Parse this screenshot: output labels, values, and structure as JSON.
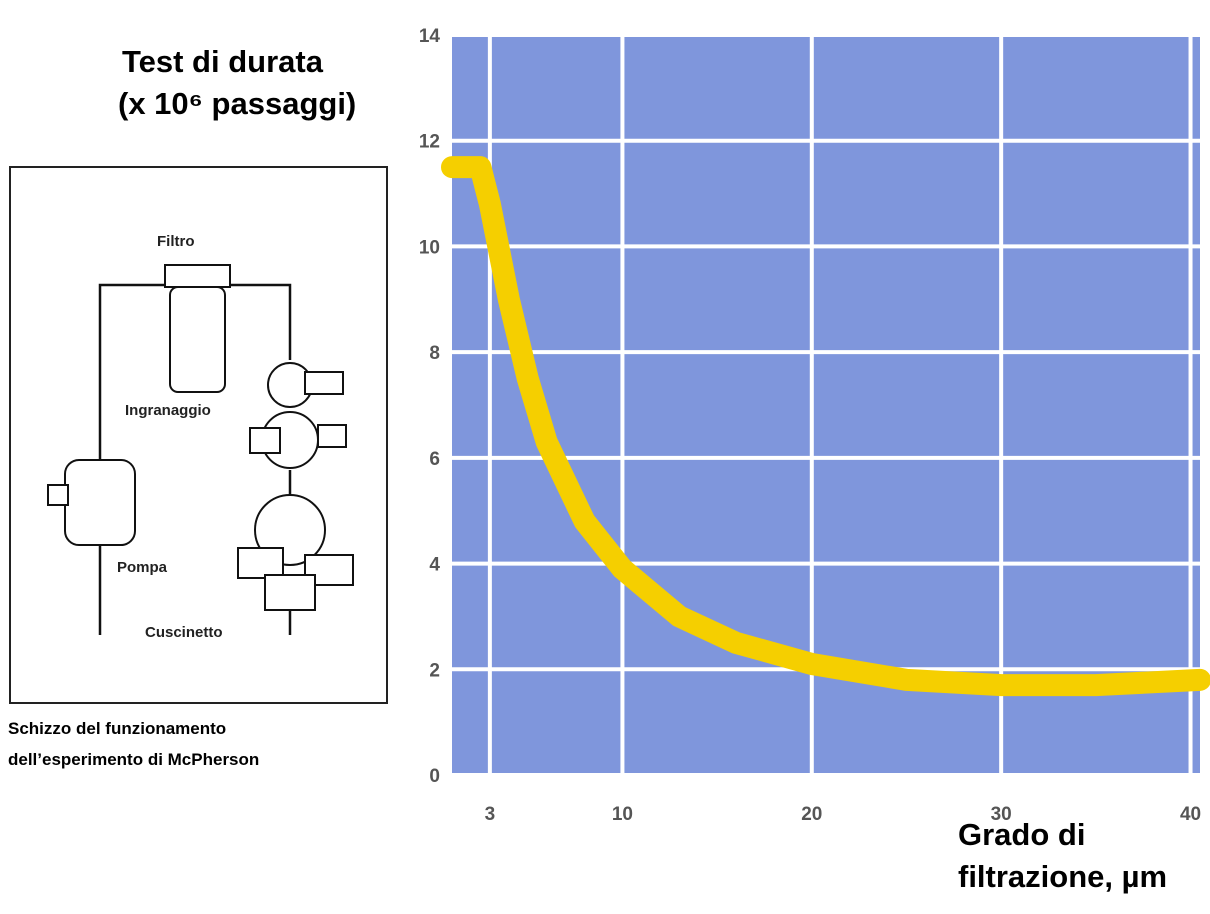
{
  "chart_data": {
    "type": "line",
    "y_label": [
      "Test di durata",
      "(x 10⁶ passaggi)"
    ],
    "x_label": [
      "Grado di",
      "filtrazione, µm"
    ],
    "x": [
      1,
      2.5,
      3,
      4,
      5,
      6,
      8,
      10,
      13,
      16,
      20,
      25,
      30,
      35,
      40.5
    ],
    "values": [
      11.5,
      11.5,
      10.8,
      9,
      7.5,
      6.3,
      4.8,
      3.9,
      3,
      2.5,
      2.1,
      1.8,
      1.7,
      1.7,
      1.8
    ],
    "color": "#f5cf00",
    "background": "#7f96dc",
    "xlim": [
      1,
      40.5
    ],
    "ylim": [
      0,
      14
    ],
    "xticks": [
      3,
      10,
      20,
      30,
      40
    ],
    "yticks": [
      0,
      2,
      4,
      6,
      8,
      10,
      12,
      14
    ],
    "grid": true
  },
  "diagram": {
    "labels": [
      "Filtro",
      "Ingranaggio",
      "Pompa",
      "Cuscinetto"
    ],
    "caption": [
      "Schizzo del funzionamento",
      "dell’esperimento di McPherson"
    ]
  }
}
